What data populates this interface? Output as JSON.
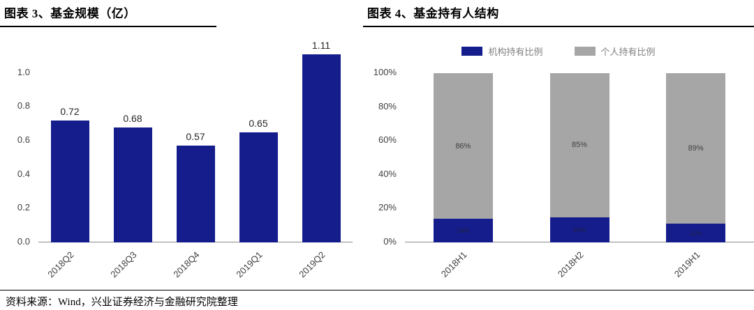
{
  "page": {
    "source_note": "资料来源：Wind，兴业证券经济与金融研究院整理"
  },
  "chart_data": [
    {
      "type": "bar",
      "title": "图表 3、基金规模（亿）",
      "categories": [
        "2018Q2",
        "2018Q3",
        "2018Q4",
        "2019Q1",
        "2019Q2"
      ],
      "values": [
        0.72,
        0.68,
        0.57,
        0.65,
        1.11
      ],
      "data_labels": [
        "0.72",
        "0.68",
        "0.57",
        "0.65",
        "1.11"
      ],
      "xlabel": "",
      "ylabel": "",
      "ylim": [
        0,
        1.2
      ],
      "yticks": [
        "0.0",
        "0.2",
        "0.4",
        "0.6",
        "0.8",
        "1.0"
      ],
      "bar_color": "#151D8C",
      "grid": false,
      "legend_position": "none"
    },
    {
      "type": "bar",
      "stacked": true,
      "stacked_percent": true,
      "title": "图表 4、基金持有人结构",
      "categories": [
        "2018H1",
        "2018H2",
        "2019H1"
      ],
      "series": [
        {
          "name": "机构持有比例",
          "color": "#151D8C",
          "values": [
            14,
            15,
            11
          ],
          "labels": [
            "14%",
            "15%",
            "11%"
          ]
        },
        {
          "name": "个人持有比例",
          "color": "#A6A6A6",
          "values": [
            86,
            85,
            89
          ],
          "labels": [
            "86%",
            "85%",
            "89%"
          ]
        }
      ],
      "xlabel": "",
      "ylabel": "",
      "ylim": [
        0,
        100
      ],
      "yticks": [
        "0%",
        "20%",
        "40%",
        "60%",
        "80%",
        "100%"
      ],
      "grid": false,
      "legend_position": "top"
    }
  ]
}
